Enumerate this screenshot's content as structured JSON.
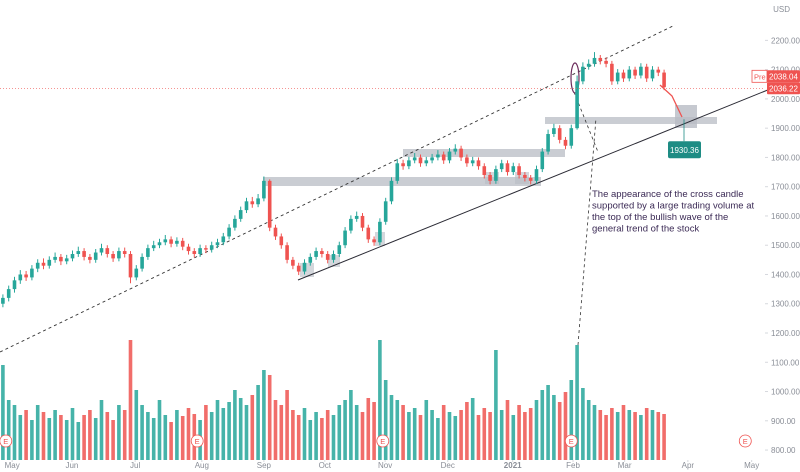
{
  "chart_data": {
    "type": "candlestick",
    "currency": "USD",
    "up_color": "#26a69a",
    "down_color": "#ef5350",
    "xlim": [
      -0.5,
      131.4
    ],
    "xticks": [
      {
        "value": 1.6,
        "label": "May"
      },
      {
        "value": 11.9,
        "label": "Jun"
      },
      {
        "value": 22.8,
        "label": "Jul"
      },
      {
        "value": 34.3,
        "label": "Aug"
      },
      {
        "value": 45,
        "label": "Sep"
      },
      {
        "value": 55.5,
        "label": "Oct"
      },
      {
        "value": 65.9,
        "label": "Nov"
      },
      {
        "value": 76.7,
        "label": "Dec"
      },
      {
        "value": 87.9,
        "label": "2021"
      },
      {
        "value": 98.3,
        "label": "Feb"
      },
      {
        "value": 107.2,
        "label": "Mar"
      },
      {
        "value": 118.1,
        "label": "Apr"
      },
      {
        "value": 129.1,
        "label": "May"
      }
    ],
    "ylim": [
      766,
      2338
    ],
    "yticks": [
      {
        "value": 800,
        "label": "800.00"
      },
      {
        "value": 900,
        "label": "900.00"
      },
      {
        "value": 1000,
        "label": "1000.00"
      },
      {
        "value": 1100,
        "label": "1100.00"
      },
      {
        "value": 1200,
        "label": "1200.00"
      },
      {
        "value": 1300,
        "label": "1300.00"
      },
      {
        "value": 1400,
        "label": "1400.00"
      },
      {
        "value": 1500,
        "label": "1500.00"
      },
      {
        "value": 1600,
        "label": "1600.00"
      },
      {
        "value": 1700,
        "label": "1700.00"
      },
      {
        "value": 1800,
        "label": "1800.00"
      },
      {
        "value": 1900,
        "label": "1900.00"
      },
      {
        "value": 2000,
        "label": "2000.00"
      },
      {
        "value": 2100,
        "label": "2100.00"
      },
      {
        "value": 2200,
        "label": "2200.00"
      }
    ],
    "open": [
      1300,
      1320,
      1350,
      1380,
      1400,
      1390,
      1420,
      1440,
      1430,
      1450,
      1460,
      1445,
      1455,
      1470,
      1480,
      1460,
      1450,
      1475,
      1490,
      1470,
      1455,
      1480,
      1470,
      1390,
      1420,
      1460,
      1490,
      1500,
      1510,
      1520,
      1505,
      1515,
      1495,
      1480,
      1470,
      1490,
      1485,
      1500,
      1510,
      1530,
      1560,
      1590,
      1620,
      1650,
      1640,
      1660,
      1720,
      1560,
      1530,
      1500,
      1450,
      1430,
      1410,
      1440,
      1460,
      1480,
      1470,
      1450,
      1470,
      1500,
      1550,
      1590,
      1600,
      1560,
      1520,
      1510,
      1580,
      1650,
      1720,
      1780,
      1770,
      1790,
      1800,
      1780,
      1790,
      1800,
      1810,
      1790,
      1820,
      1830,
      1800,
      1780,
      1790,
      1770,
      1740,
      1720,
      1760,
      1780,
      1750,
      1770,
      1740,
      1730,
      1720,
      1760,
      1820,
      1880,
      1900,
      1860,
      1840,
      1900,
      2060,
      2110,
      2120,
      2140,
      2130,
      2120,
      2060,
      2090,
      2070,
      2100,
      2080,
      2110,
      2070,
      2100,
      2090
    ],
    "high": [
      1332,
      1362,
      1392,
      1415,
      1412,
      1432,
      1452,
      1455,
      1462,
      1475,
      1470,
      1467,
      1482,
      1495,
      1490,
      1470,
      1487,
      1505,
      1500,
      1480,
      1492,
      1492,
      1480,
      1432,
      1472,
      1502,
      1515,
      1522,
      1535,
      1530,
      1527,
      1525,
      1505,
      1490,
      1502,
      1500,
      1512,
      1522,
      1542,
      1572,
      1602,
      1632,
      1662,
      1665,
      1675,
      1735,
      1725,
      1570,
      1540,
      1510,
      1460,
      1440,
      1452,
      1472,
      1492,
      1490,
      1480,
      1482,
      1512,
      1562,
      1602,
      1615,
      1610,
      1570,
      1530,
      1592,
      1662,
      1732,
      1795,
      1792,
      1802,
      1815,
      1810,
      1802,
      1812,
      1825,
      1820,
      1832,
      1845,
      1840,
      1810,
      1802,
      1800,
      1780,
      1750,
      1772,
      1792,
      1790,
      1782,
      1780,
      1750,
      1740,
      1772,
      1832,
      1895,
      1915,
      1910,
      1870,
      1912,
      2080,
      2125,
      2135,
      2160,
      2150,
      2142,
      2130,
      2102,
      2100,
      2112,
      2110,
      2122,
      2120,
      2112,
      2110,
      2100
    ],
    "low": [
      1288,
      1308,
      1338,
      1368,
      1378,
      1380,
      1408,
      1418,
      1420,
      1440,
      1432,
      1435,
      1445,
      1460,
      1448,
      1438,
      1440,
      1465,
      1458,
      1443,
      1445,
      1458,
      1370,
      1380,
      1410,
      1450,
      1480,
      1490,
      1500,
      1493,
      1495,
      1483,
      1468,
      1458,
      1460,
      1473,
      1475,
      1490,
      1500,
      1520,
      1550,
      1580,
      1610,
      1628,
      1630,
      1650,
      1548,
      1518,
      1488,
      1438,
      1418,
      1398,
      1400,
      1430,
      1450,
      1458,
      1438,
      1440,
      1460,
      1490,
      1540,
      1580,
      1548,
      1508,
      1498,
      1500,
      1570,
      1640,
      1710,
      1758,
      1760,
      1780,
      1768,
      1770,
      1780,
      1790,
      1778,
      1780,
      1810,
      1788,
      1768,
      1770,
      1758,
      1728,
      1708,
      1710,
      1750,
      1738,
      1740,
      1728,
      1718,
      1708,
      1710,
      1750,
      1810,
      1870,
      1848,
      1828,
      1830,
      1895,
      2050,
      2100,
      2110,
      2118,
      2108,
      2048,
      2050,
      2058,
      2060,
      2068,
      2070,
      2058,
      2060,
      2078,
      2030
    ],
    "close": [
      1320,
      1350,
      1380,
      1400,
      1390,
      1420,
      1440,
      1430,
      1450,
      1460,
      1445,
      1455,
      1470,
      1480,
      1460,
      1450,
      1475,
      1490,
      1470,
      1455,
      1480,
      1470,
      1390,
      1420,
      1460,
      1490,
      1500,
      1510,
      1520,
      1505,
      1515,
      1495,
      1480,
      1470,
      1490,
      1485,
      1500,
      1510,
      1530,
      1560,
      1590,
      1620,
      1650,
      1640,
      1660,
      1720,
      1560,
      1530,
      1500,
      1450,
      1430,
      1410,
      1440,
      1460,
      1480,
      1470,
      1450,
      1470,
      1500,
      1550,
      1590,
      1600,
      1560,
      1520,
      1510,
      1580,
      1650,
      1720,
      1780,
      1770,
      1790,
      1800,
      1780,
      1790,
      1800,
      1810,
      1790,
      1820,
      1830,
      1800,
      1780,
      1790,
      1770,
      1740,
      1720,
      1760,
      1780,
      1750,
      1770,
      1740,
      1730,
      1720,
      1760,
      1820,
      1880,
      1900,
      1860,
      1840,
      1900,
      2060,
      2110,
      2120,
      2140,
      2130,
      2120,
      2060,
      2090,
      2070,
      2100,
      2080,
      2110,
      2070,
      2100,
      2090,
      2040
    ],
    "vlim": [
      0,
      460
    ],
    "volume": [
      95,
      60,
      55,
      45,
      50,
      40,
      55,
      48,
      42,
      50,
      45,
      40,
      52,
      38,
      45,
      50,
      42,
      60,
      48,
      40,
      55,
      50,
      120,
      70,
      55,
      48,
      42,
      60,
      45,
      38,
      50,
      44,
      52,
      46,
      40,
      55,
      48,
      60,
      52,
      58,
      70,
      62,
      55,
      65,
      75,
      90,
      85,
      60,
      55,
      70,
      50,
      45,
      52,
      40,
      48,
      42,
      50,
      45,
      55,
      60,
      70,
      55,
      48,
      62,
      58,
      120,
      80,
      65,
      60,
      55,
      48,
      52,
      45,
      60,
      50,
      42,
      55,
      48,
      44,
      50,
      58,
      62,
      45,
      52,
      48,
      110,
      50,
      60,
      45,
      55,
      48,
      52,
      60,
      70,
      75,
      65,
      58,
      68,
      80,
      115,
      72,
      60,
      55,
      50,
      45,
      52,
      48,
      55,
      50,
      48,
      45,
      52,
      50,
      48,
      46
    ],
    "premarket": {
      "label": "Pre",
      "price": 2038.04
    },
    "last_price": 2036.22,
    "target_price": 1930.36,
    "events": [
      {
        "x": 0.5,
        "label": "E"
      },
      {
        "x": 33.5,
        "label": "E"
      },
      {
        "x": 65.5,
        "label": "E"
      },
      {
        "x": 98,
        "label": "E"
      },
      {
        "x": 128,
        "label": "E"
      }
    ],
    "annotation": [
      "The appearance of the cross candle",
      "supported by a large trading volume at",
      "the top of the bullish wave of the",
      "general trend of the stock"
    ]
  }
}
